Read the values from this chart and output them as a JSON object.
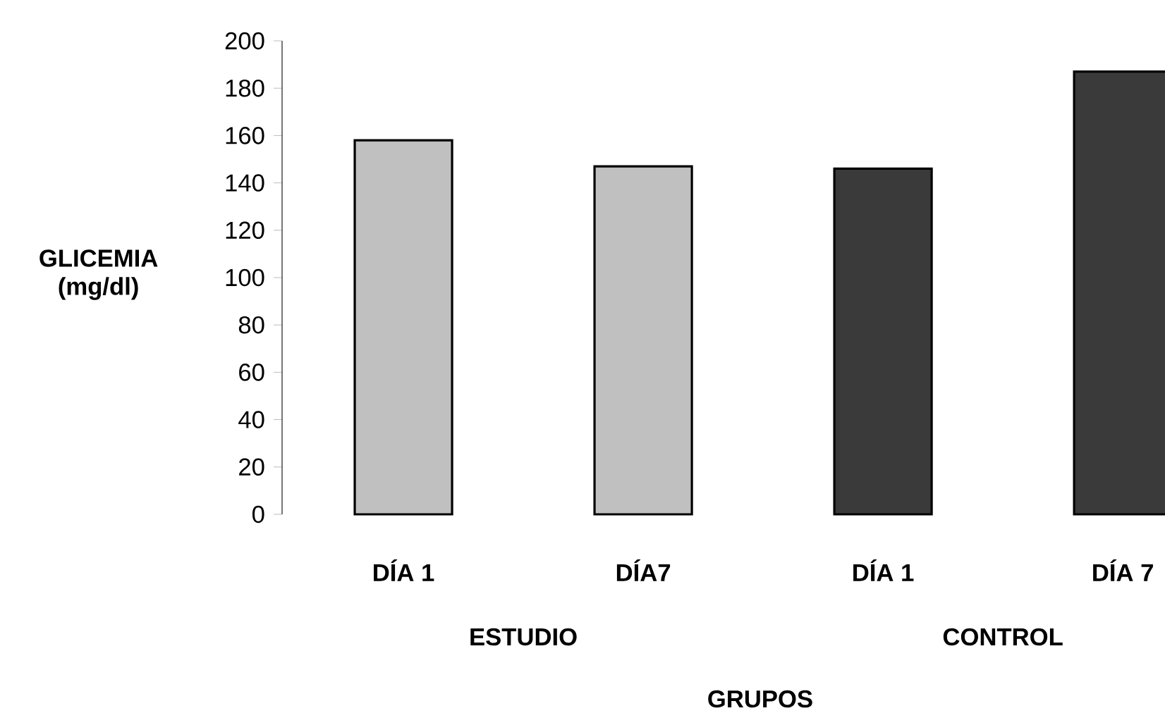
{
  "chart_data": {
    "type": "bar",
    "categories": [
      "DÍA 1",
      "DÍA7",
      "DÍA 1",
      "DÍA 7"
    ],
    "values": [
      158,
      147,
      146,
      187
    ],
    "colors": [
      "#c0c0c0",
      "#c0c0c0",
      "#3a3a3a",
      "#3a3a3a"
    ],
    "xlabel": "GRUPOS",
    "ylabel": "GLICEMIA (mg/dl)",
    "annotations": [
      "ESTUDIO",
      "CONTROL"
    ],
    "ylim": [
      0,
      200
    ],
    "yticks": [
      0,
      20,
      40,
      60,
      80,
      100,
      120,
      140,
      160,
      180,
      200
    ],
    "grid": false
  }
}
